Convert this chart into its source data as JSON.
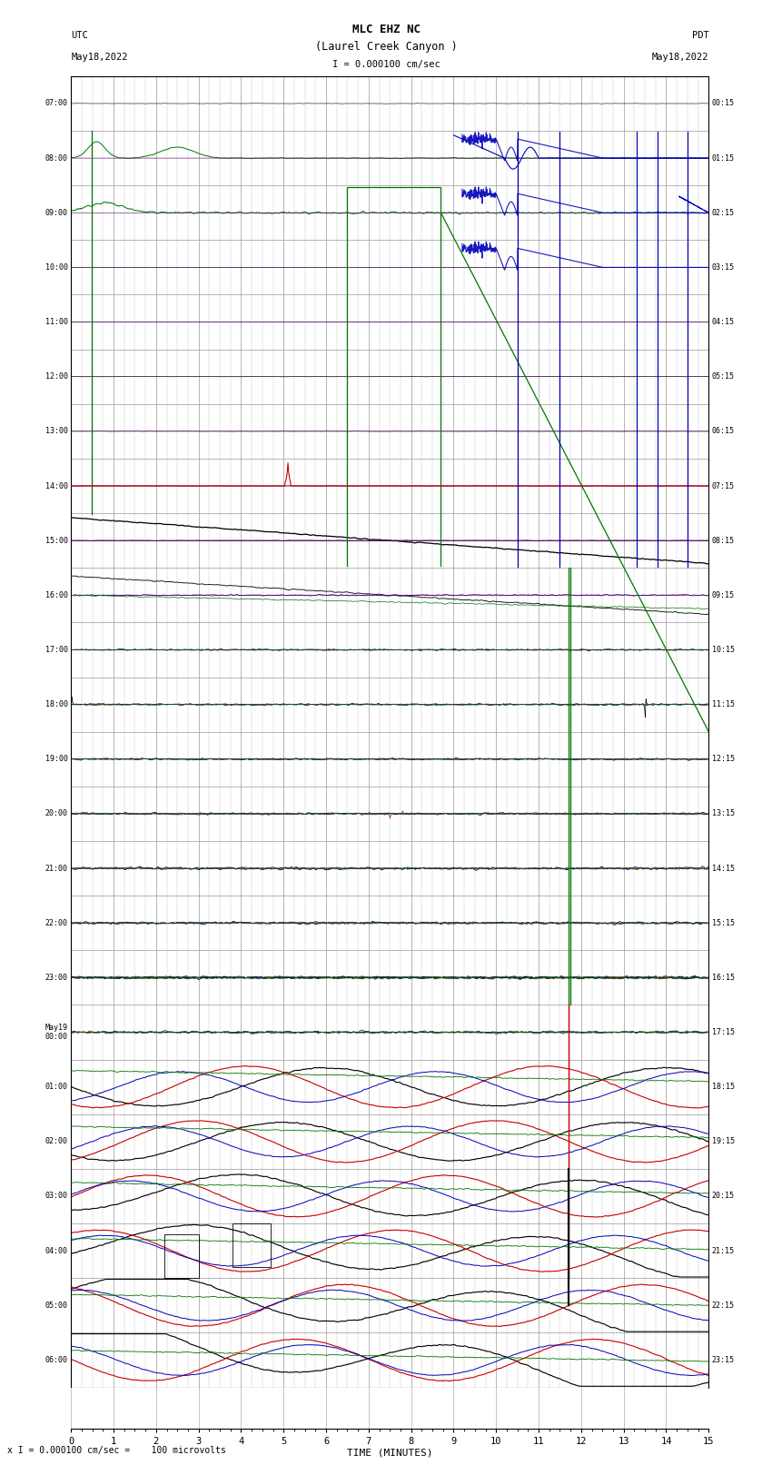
{
  "title_line1": "MLC EHZ NC",
  "title_line2": "(Laurel Creek Canyon )",
  "scale_text": "I = 0.000100 cm/sec",
  "xlabel": "TIME (MINUTES)",
  "footer": "x I = 0.000100 cm/sec =    100 microvolts",
  "utc_times": [
    "07:00",
    "08:00",
    "09:00",
    "10:00",
    "11:00",
    "12:00",
    "13:00",
    "14:00",
    "15:00",
    "16:00",
    "17:00",
    "18:00",
    "19:00",
    "20:00",
    "21:00",
    "22:00",
    "23:00",
    "May19\n00:00",
    "01:00",
    "02:00",
    "03:00",
    "04:00",
    "05:00",
    "06:00"
  ],
  "pdt_times": [
    "00:15",
    "01:15",
    "02:15",
    "03:15",
    "04:15",
    "05:15",
    "06:15",
    "07:15",
    "08:15",
    "09:15",
    "10:15",
    "11:15",
    "12:15",
    "13:15",
    "14:15",
    "15:15",
    "16:15",
    "17:15",
    "18:15",
    "19:15",
    "20:15",
    "21:15",
    "22:15",
    "23:15"
  ],
  "n_rows": 24,
  "n_minutes": 15,
  "bg_color": "#ffffff",
  "grid_color": "#999999",
  "black": "#000000",
  "red": "#cc0000",
  "blue": "#0000bb",
  "green": "#007700",
  "figsize": [
    8.5,
    16.13
  ],
  "dpi": 100
}
